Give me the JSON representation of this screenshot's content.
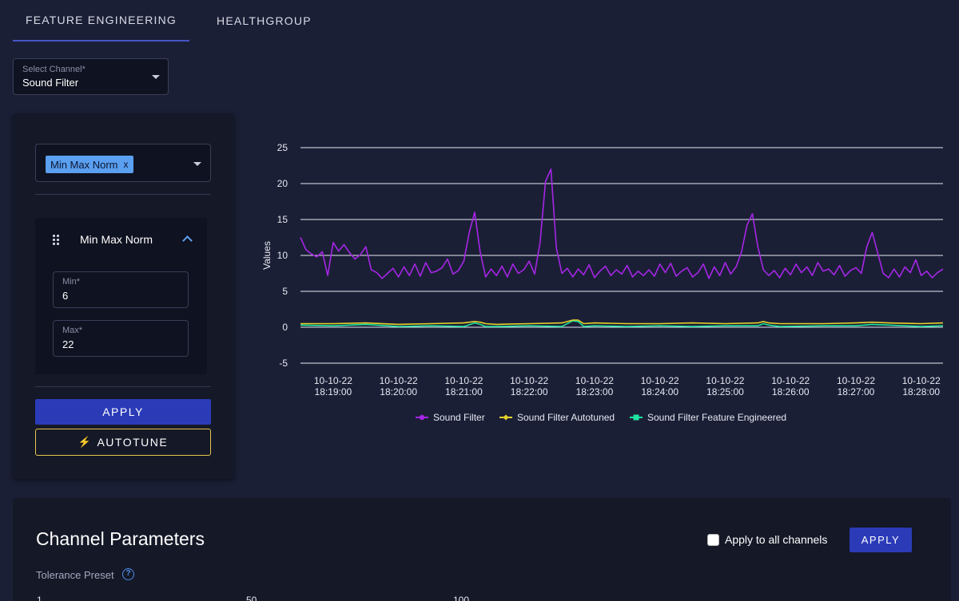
{
  "tabs": [
    {
      "label": "FEATURE ENGINEERING",
      "active": true
    },
    {
      "label": "HEALTHGROUP",
      "active": false
    }
  ],
  "channel_select": {
    "label": "Select Channel*",
    "value": "Sound Filter"
  },
  "method_select": {
    "chip": "Min Max Norm",
    "chip_remove": "x"
  },
  "method_card": {
    "title": "Min Max Norm",
    "min_label": "Min*",
    "min_value": "6",
    "max_label": "Max*",
    "max_value": "22"
  },
  "buttons": {
    "apply": "APPLY",
    "autotune": "AUTOTUNE"
  },
  "colors": {
    "accent": "#2b3bb8",
    "autotune_border": "#e7c54c",
    "chip": "#5a9ff0"
  },
  "chart_data": {
    "type": "line",
    "ylabel": "Values",
    "ylim": [
      -5,
      25
    ],
    "yticks": [
      -5,
      0,
      5,
      10,
      15,
      20,
      25
    ],
    "grid": true,
    "legend_position": "bottom-center",
    "x_time_start": "18:18:30",
    "x_time_end": "18:28:20",
    "xticks": [
      {
        "date": "10-10-22",
        "time": "18:19:00"
      },
      {
        "date": "10-10-22",
        "time": "18:20:00"
      },
      {
        "date": "10-10-22",
        "time": "18:21:00"
      },
      {
        "date": "10-10-22",
        "time": "18:22:00"
      },
      {
        "date": "10-10-22",
        "time": "18:23:00"
      },
      {
        "date": "10-10-22",
        "time": "18:24:00"
      },
      {
        "date": "10-10-22",
        "time": "18:25:00"
      },
      {
        "date": "10-10-22",
        "time": "18:26:00"
      },
      {
        "date": "10-10-22",
        "time": "18:27:00"
      },
      {
        "date": "10-10-22",
        "time": "18:28:00"
      }
    ],
    "series": [
      {
        "name": "Sound Filter",
        "color": "#a626e6",
        "marker": "circle",
        "x_seconds": [
          0,
          5,
          10,
          15,
          20,
          25,
          30,
          35,
          40,
          45,
          50,
          55,
          60,
          65,
          70,
          75,
          80,
          85,
          90,
          95,
          100,
          105,
          110,
          115,
          120,
          125,
          130,
          135,
          140,
          145,
          150,
          155,
          160,
          165,
          170,
          175,
          180,
          185,
          190,
          195,
          200,
          205,
          210,
          215,
          220,
          225,
          230,
          235,
          240,
          245,
          250,
          255,
          260,
          265,
          270,
          275,
          280,
          285,
          290,
          295,
          300,
          305,
          310,
          315,
          320,
          325,
          330,
          335,
          340,
          345,
          350,
          355,
          360,
          365,
          370,
          375,
          380,
          385,
          390,
          395,
          400,
          405,
          410,
          415,
          420,
          425,
          430,
          435,
          440,
          445,
          450,
          455,
          460,
          465,
          470,
          475,
          480,
          485,
          490,
          495,
          500,
          505,
          510,
          515,
          520,
          525,
          530,
          535,
          540,
          545,
          550,
          555,
          560,
          565,
          570,
          575,
          580,
          585,
          590
        ],
        "values": [
          12.5,
          10.8,
          10.2,
          9.8,
          10.5,
          7.2,
          11.8,
          10.6,
          11.5,
          10.4,
          9.5,
          10.1,
          11.2,
          8.0,
          7.6,
          6.8,
          7.5,
          8.2,
          7.0,
          8.4,
          7.2,
          8.8,
          7.1,
          9.0,
          7.6,
          7.8,
          8.3,
          9.5,
          7.4,
          7.9,
          9.2,
          13.2,
          16.0,
          10.5,
          7.0,
          8.1,
          7.2,
          8.5,
          7.0,
          8.8,
          7.5,
          8.0,
          9.2,
          7.4,
          11.8,
          20.3,
          22.0,
          11.0,
          7.5,
          8.2,
          7.0,
          8.1,
          7.3,
          8.7,
          6.9,
          7.8,
          8.5,
          7.2,
          8.0,
          7.4,
          8.6,
          7.0,
          7.8,
          7.2,
          8.0,
          7.1,
          8.8,
          7.6,
          8.9,
          7.1,
          7.8,
          8.3,
          7.0,
          7.6,
          8.8,
          6.8,
          8.4,
          7.2,
          9.0,
          7.4,
          8.4,
          10.5,
          14.2,
          15.8,
          11.2,
          8.0,
          7.2,
          7.9,
          6.9,
          8.2,
          7.3,
          8.8,
          7.6,
          8.4,
          7.2,
          9.0,
          7.8,
          8.1,
          7.3,
          8.6,
          7.1,
          7.9,
          8.3,
          7.5,
          11.2,
          13.2,
          10.4,
          7.5,
          6.9,
          8.1,
          7.0,
          8.4,
          7.6,
          9.4,
          7.2,
          7.8,
          6.9,
          7.6,
          8.1
        ]
      },
      {
        "name": "Sound Filter Autotuned",
        "color": "#e6d22a",
        "marker": "diamond",
        "x_seconds": [
          0,
          30,
          60,
          90,
          120,
          150,
          160,
          165,
          170,
          180,
          210,
          240,
          250,
          255,
          260,
          270,
          300,
          330,
          360,
          390,
          420,
          425,
          430,
          440,
          480,
          510,
          525,
          540,
          570,
          590
        ],
        "values": [
          0.5,
          0.5,
          0.6,
          0.4,
          0.5,
          0.6,
          0.8,
          0.7,
          0.5,
          0.4,
          0.5,
          0.6,
          1.0,
          1.0,
          0.5,
          0.6,
          0.5,
          0.5,
          0.6,
          0.5,
          0.6,
          0.8,
          0.6,
          0.5,
          0.5,
          0.6,
          0.7,
          0.6,
          0.5,
          0.6
        ]
      },
      {
        "name": "Sound Filter Feature Engineered",
        "color": "#1fe3a0",
        "marker": "square",
        "x_seconds": [
          0,
          30,
          60,
          90,
          120,
          150,
          160,
          165,
          170,
          180,
          210,
          240,
          250,
          255,
          260,
          270,
          300,
          330,
          360,
          390,
          420,
          425,
          430,
          440,
          480,
          510,
          525,
          540,
          570,
          590
        ],
        "values": [
          0.3,
          0.2,
          0.4,
          0.1,
          0.2,
          0.1,
          0.6,
          0.4,
          0.1,
          0.1,
          0.2,
          0.1,
          0.9,
          0.8,
          0.1,
          0.2,
          0.1,
          0.2,
          0.1,
          0.2,
          0.2,
          0.5,
          0.3,
          0.1,
          0.2,
          0.2,
          0.4,
          0.3,
          0.1,
          0.2
        ]
      }
    ]
  },
  "params": {
    "title": "Channel Parameters",
    "apply_all_label": "Apply to all channels",
    "apply_label": "APPLY",
    "tolerance_label": "Tolerance Preset",
    "help_glyph": "?",
    "slider_marks": [
      "1",
      "50",
      "100"
    ]
  }
}
